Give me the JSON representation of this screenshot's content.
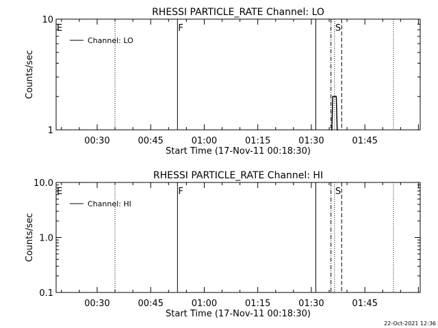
{
  "footer_date": "22-Oct-2021 12:36",
  "chart_data": [
    {
      "type": "line",
      "title": "RHESSI PARTICLE_RATE Channel: LO",
      "xlabel": "Start Time (17-Nov-11 00:18:30)",
      "ylabel": "Counts/sec",
      "xlim": [
        "00:18:30",
        "02:00:30"
      ],
      "x_ticks": [
        "00:30",
        "00:45",
        "01:00",
        "01:15",
        "01:30",
        "01:45"
      ],
      "y_scale": "log",
      "ylim": [
        1,
        10
      ],
      "y_ticks": [
        "1",
        "10"
      ],
      "legend": {
        "position": "top-left",
        "entries": [
          "Channel: LO"
        ]
      },
      "series": [
        {
          "name": "Channel: LO",
          "x": [
            "01:35:30",
            "01:35:45",
            "01:36:00",
            "01:37:00",
            "01:37:15",
            "01:37:30"
          ],
          "values": [
            1,
            1,
            2,
            2,
            1,
            1
          ]
        }
      ],
      "event_lines": [
        {
          "time": "00:35:00",
          "style": "dotted",
          "label": ""
        },
        {
          "time": "00:52:30",
          "style": "solid",
          "label": "F"
        },
        {
          "time": "01:31:15",
          "style": "solid",
          "label": ""
        },
        {
          "time": "01:35:30",
          "style": "dashdot",
          "label": ""
        },
        {
          "time": "01:36:30",
          "style": "dotted",
          "label": "S"
        },
        {
          "time": "01:38:30",
          "style": "dashed",
          "label": ""
        },
        {
          "time": "01:53:00",
          "style": "dotted",
          "label": ""
        }
      ],
      "corner_label": "E"
    },
    {
      "type": "line",
      "title": "RHESSI PARTICLE_RATE Channel: HI",
      "xlabel": "Start Time (17-Nov-11 00:18:30)",
      "ylabel": "Counts/sec",
      "xlim": [
        "00:18:30",
        "02:00:30"
      ],
      "x_ticks": [
        "00:30",
        "00:45",
        "01:00",
        "01:15",
        "01:30",
        "01:45"
      ],
      "y_scale": "log",
      "ylim": [
        0.1,
        10
      ],
      "y_ticks": [
        "0.1",
        "1.0",
        "10.0"
      ],
      "legend": {
        "position": "top-left",
        "entries": [
          "Channel: HI"
        ]
      },
      "series": [
        {
          "name": "Channel: HI",
          "x": [],
          "values": []
        }
      ],
      "event_lines": [
        {
          "time": "00:35:00",
          "style": "dotted",
          "label": ""
        },
        {
          "time": "00:52:30",
          "style": "solid",
          "label": "F"
        },
        {
          "time": "01:31:15",
          "style": "solid",
          "label": ""
        },
        {
          "time": "01:35:30",
          "style": "dashdot",
          "label": ""
        },
        {
          "time": "01:36:30",
          "style": "dotted",
          "label": "S"
        },
        {
          "time": "01:38:30",
          "style": "dashed",
          "label": ""
        },
        {
          "time": "01:53:00",
          "style": "dotted",
          "label": ""
        }
      ],
      "corner_label": "E"
    }
  ]
}
